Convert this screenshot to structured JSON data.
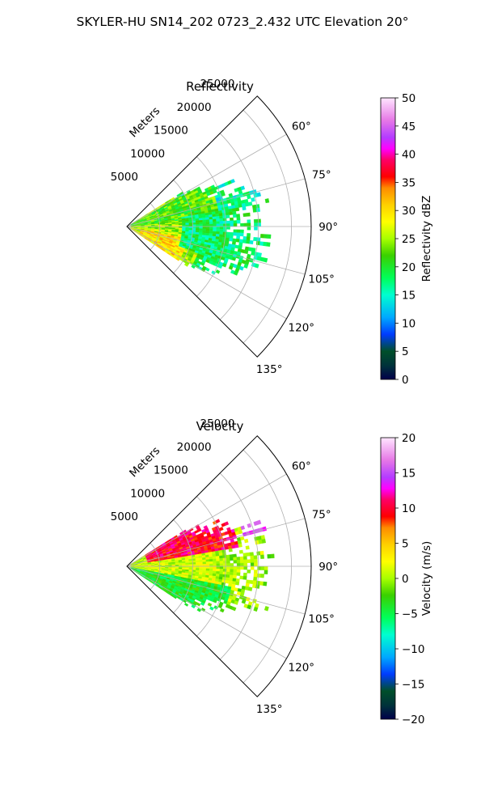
{
  "figure": {
    "suptitle": "SKYLER-HU  SN14_202  0723_2.432 UTC Elevation 20°"
  },
  "chart_data": [
    {
      "type": "heatmap",
      "subtype": "polar-sector-ppi",
      "title": "Reflectivity",
      "range_label": "Meters",
      "range_ticks": [
        5000,
        10000,
        15000,
        20000,
        25000
      ],
      "range_tick_labels": [
        "5000",
        "10000",
        "15000",
        "20000",
        "25000"
      ],
      "range_max": 28000,
      "azimuth_range_deg": [
        45,
        135
      ],
      "azimuth_ticks_deg": [
        60,
        75,
        90,
        105,
        120,
        135
      ],
      "azimuth_tick_labels": [
        "60°",
        "75°",
        "90°",
        "105°",
        "120°",
        "135°"
      ],
      "grid": true,
      "colorbar": {
        "label": "Reflectivity dBZ",
        "vmin": 0,
        "vmax": 50,
        "ticks": [
          0,
          5,
          10,
          15,
          20,
          25,
          30,
          35,
          40,
          45,
          50
        ],
        "tick_labels": [
          "0",
          "5",
          "10",
          "15",
          "20",
          "25",
          "30",
          "35",
          "40",
          "45",
          "50"
        ],
        "stops": [
          [
            0.0,
            "#00004a"
          ],
          [
            0.05,
            "#00333a"
          ],
          [
            0.1,
            "#004f2a"
          ],
          [
            0.16,
            "#003cff"
          ],
          [
            0.22,
            "#00a8ff"
          ],
          [
            0.3,
            "#00ffd0"
          ],
          [
            0.36,
            "#00ff5a"
          ],
          [
            0.44,
            "#3ad000"
          ],
          [
            0.5,
            "#a8ff00"
          ],
          [
            0.56,
            "#ffff00"
          ],
          [
            0.62,
            "#ffd000"
          ],
          [
            0.68,
            "#ff8c00"
          ],
          [
            0.72,
            "#ff0000"
          ],
          [
            0.78,
            "#ff0066"
          ],
          [
            0.82,
            "#ff00ff"
          ],
          [
            0.86,
            "#b43cff"
          ],
          [
            0.92,
            "#e678e6"
          ],
          [
            1.0,
            "#ffe6ff"
          ]
        ]
      },
      "field_regions": [
        {
          "az": [
            45,
            135
          ],
          "r": [
            0,
            8000
          ],
          "value": 25
        },
        {
          "az": [
            60,
            85
          ],
          "r": [
            0,
            14000
          ],
          "value": 22
        },
        {
          "az": [
            95,
            125
          ],
          "r": [
            0,
            11000
          ],
          "value": 26
        },
        {
          "az": [
            100,
            125
          ],
          "r": [
            2000,
            9000
          ],
          "value": 30
        },
        {
          "az": [
            65,
            80
          ],
          "r": [
            14000,
            21000
          ],
          "value": 16
        },
        {
          "az": [
            80,
            110
          ],
          "r": [
            8000,
            17000
          ],
          "value": 18
        }
      ],
      "echo_extent_km": {
        "az_min": 58,
        "az_max": 122,
        "r_max_m": 21000
      }
    },
    {
      "type": "heatmap",
      "subtype": "polar-sector-ppi",
      "title": "Velocity",
      "range_label": "Meters",
      "range_ticks": [
        5000,
        10000,
        15000,
        20000,
        25000
      ],
      "range_tick_labels": [
        "5000",
        "10000",
        "15000",
        "20000",
        "25000"
      ],
      "range_max": 28000,
      "azimuth_range_deg": [
        45,
        135
      ],
      "azimuth_ticks_deg": [
        60,
        75,
        90,
        105,
        120,
        135
      ],
      "azimuth_tick_labels": [
        "60°",
        "75°",
        "90°",
        "105°",
        "120°",
        "135°"
      ],
      "grid": true,
      "colorbar": {
        "label": "Velocity (m/s)",
        "vmin": -20,
        "vmax": 20,
        "ticks": [
          -20,
          -15,
          -10,
          -5,
          0,
          5,
          10,
          15,
          20
        ],
        "tick_labels": [
          "−20",
          "−15",
          "−10",
          "−5",
          "0",
          "5",
          "10",
          "15",
          "20"
        ],
        "stops": [
          [
            0.0,
            "#00004a"
          ],
          [
            0.05,
            "#00333a"
          ],
          [
            0.1,
            "#004f2a"
          ],
          [
            0.16,
            "#003cff"
          ],
          [
            0.22,
            "#00a8ff"
          ],
          [
            0.3,
            "#00ffd0"
          ],
          [
            0.36,
            "#00ff5a"
          ],
          [
            0.44,
            "#3ad000"
          ],
          [
            0.5,
            "#a8ff00"
          ],
          [
            0.56,
            "#ffff00"
          ],
          [
            0.62,
            "#ffd000"
          ],
          [
            0.68,
            "#ff8c00"
          ],
          [
            0.72,
            "#ff0000"
          ],
          [
            0.78,
            "#ff0066"
          ],
          [
            0.82,
            "#ff00ff"
          ],
          [
            0.86,
            "#b43cff"
          ],
          [
            0.92,
            "#e678e6"
          ],
          [
            1.0,
            "#ffe6ff"
          ]
        ]
      },
      "field_regions": [
        {
          "az": [
            55,
            80
          ],
          "r": [
            3000,
            17000
          ],
          "value": 10
        },
        {
          "az": [
            60,
            75
          ],
          "r": [
            18000,
            22000
          ],
          "value": 15
        },
        {
          "az": [
            80,
            100
          ],
          "r": [
            0,
            14000
          ],
          "value": 1
        },
        {
          "az": [
            100,
            125
          ],
          "r": [
            0,
            16000
          ],
          "value": -4
        }
      ],
      "echo_extent_km": {
        "az_min": 58,
        "az_max": 122,
        "r_max_m": 21000
      }
    }
  ]
}
